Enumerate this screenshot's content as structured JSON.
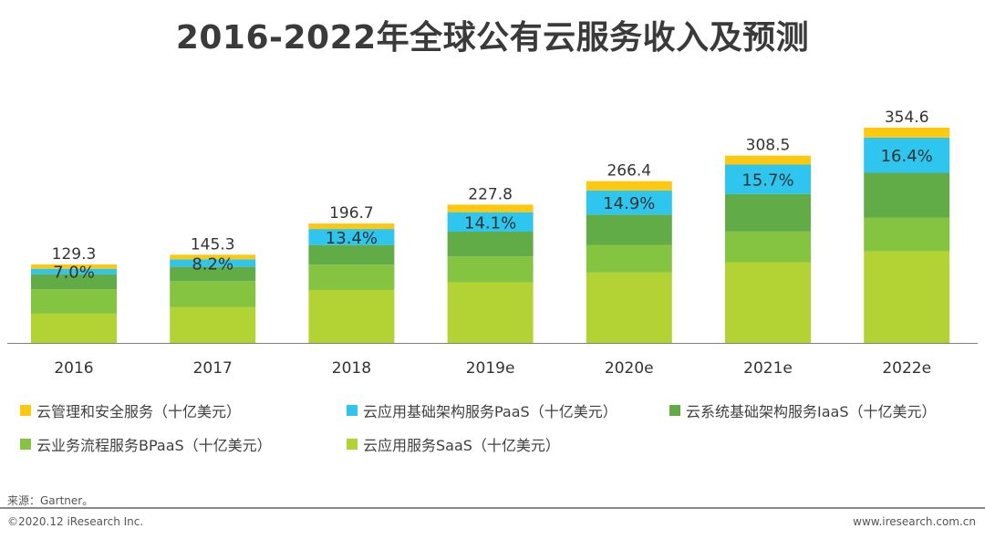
{
  "title": "2016-2022年全球公有云服务收入及预测",
  "chart_data": {
    "type": "bar",
    "stacked": true,
    "title": "2016-2022年全球公有云服务收入及预测",
    "unit": "十亿美元",
    "categories": [
      "2016",
      "2017",
      "2018",
      "2019e",
      "2020e",
      "2021e",
      "2022e"
    ],
    "totals": [
      "129.3",
      "145.3",
      "196.7",
      "227.8",
      "266.4",
      "308.5",
      "354.6"
    ],
    "paas_share_labels": [
      "7.0%",
      "8.2%",
      "13.4%",
      "14.1%",
      "14.9%",
      "15.7%",
      "16.4%"
    ],
    "series": [
      {
        "name": "云应用服务SaaS（十亿美元）",
        "key": "saas",
        "color": "#b3d334",
        "values": [
          48.2,
          58.8,
          87.2,
          99.5,
          116.0,
          133.0,
          151.1
        ]
      },
      {
        "name": "云业务流程服务BPaaS（十亿美元）",
        "key": "bpaas",
        "color": "#84c441",
        "values": [
          40.0,
          43.0,
          41.7,
          43.0,
          45.5,
          50.5,
          55.0
        ]
      },
      {
        "name": "云系统基础架构服务IaaS（十亿美元）",
        "key": "iaas",
        "color": "#62ac47",
        "values": [
          25.0,
          24.0,
          32.4,
          40.8,
          50.0,
          61.9,
          74.1
        ]
      },
      {
        "name": "云应用基础架构服务PaaS（十亿美元）",
        "key": "paas",
        "color": "#2ec5ee",
        "values": [
          9.0,
          11.9,
          26.4,
          32.1,
          39.7,
          48.4,
          58.0
        ]
      },
      {
        "name": "云管理和安全服务（十亿美元）",
        "key": "mgmt",
        "color": "#fdc80d",
        "values": [
          7.1,
          7.6,
          9.0,
          12.4,
          15.2,
          14.7,
          16.4
        ]
      }
    ],
    "ylim": [
      0,
      360
    ],
    "grid": false,
    "legend_position": "bottom"
  },
  "legend": [
    {
      "label": "云管理和安全服务（十亿美元）",
      "color": "#fdc80d"
    },
    {
      "label": "云应用基础架构服务PaaS（十亿美元）",
      "color": "#2ec5ee"
    },
    {
      "label": "云系统基础架构服务IaaS（十亿美元）",
      "color": "#62ac47"
    },
    {
      "label": "云业务流程服务BPaaS（十亿美元）",
      "color": "#84c441"
    },
    {
      "label": "云应用服务SaaS（十亿美元）",
      "color": "#b3d334"
    }
  ],
  "footer": {
    "source": "来源：Gartner。",
    "copyright": "©2020.12 iResearch Inc.",
    "site": "www.iresearch.com.cn"
  }
}
